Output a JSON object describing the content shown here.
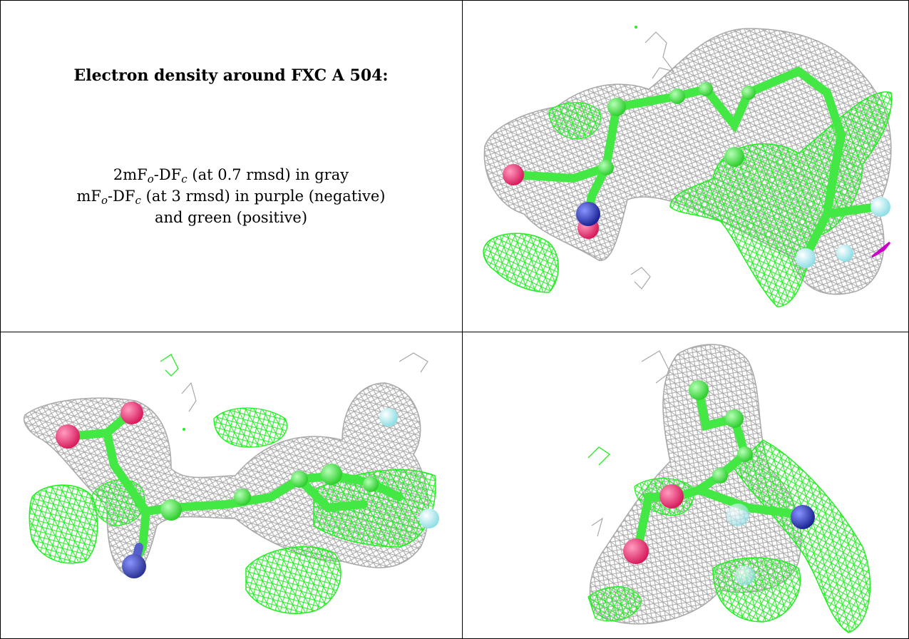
{
  "caption": {
    "title": "Electron density around FXC A 504:",
    "line1": {
      "a": "2mF",
      "s1": "o",
      "b": "-DF",
      "s2": "c",
      "c": " (at 0.7 rmsd) in gray"
    },
    "line2": {
      "a": "mF",
      "s1": "o",
      "b": "-DF",
      "s2": "c",
      "c": " (at 3 rmsd) in purple (negative)"
    },
    "line3": "and green (positive)"
  },
  "panels": [
    {
      "id": "view-top-right",
      "alt": "density view 1"
    },
    {
      "id": "view-bottom-left",
      "alt": "density view 2"
    },
    {
      "id": "view-bottom-right",
      "alt": "density view 3"
    }
  ],
  "colors": {
    "gray_mesh": "#a8a8a8",
    "green_mesh": "#22ee22",
    "purple": "#cc00cc",
    "carbon": "#44e844",
    "oxygen": "#e8336f",
    "nitrogen": "#3a44c0",
    "fluorine": "#aaf0f2"
  }
}
